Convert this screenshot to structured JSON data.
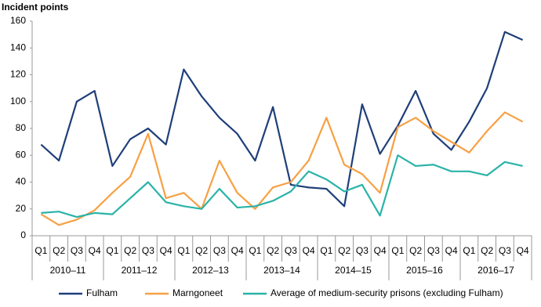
{
  "chart_data": {
    "type": "line",
    "y_label": "Incident points",
    "categories": [
      "Q1",
      "Q2",
      "Q3",
      "Q4",
      "Q1",
      "Q2",
      "Q3",
      "Q4",
      "Q1",
      "Q2",
      "Q3",
      "Q4",
      "Q1",
      "Q2",
      "Q3",
      "Q4",
      "Q1",
      "Q2",
      "Q3",
      "Q4",
      "Q1",
      "Q2",
      "Q3",
      "Q4",
      "Q1",
      "Q2",
      "Q3",
      "Q4"
    ],
    "groups": [
      "2010–11",
      "2011–12",
      "2012–13",
      "2013–14",
      "2014–15",
      "2015–16",
      "2016–17"
    ],
    "series": [
      {
        "name": "Fulham",
        "color": "#1f3f7a",
        "values": [
          68,
          56,
          100,
          108,
          52,
          72,
          80,
          68,
          124,
          104,
          88,
          76,
          56,
          96,
          38,
          36,
          35,
          22,
          98,
          61,
          82,
          108,
          76,
          64,
          85,
          110,
          152,
          146
        ]
      },
      {
        "name": "Marngoneet",
        "color": "#f7a043",
        "values": [
          16,
          8,
          12,
          19,
          32,
          44,
          76,
          28,
          32,
          20,
          56,
          32,
          20,
          36,
          40,
          56,
          88,
          53,
          46,
          32,
          81,
          88,
          78,
          70,
          62,
          78,
          92,
          85
        ]
      },
      {
        "name": "Average of medium-security prisons (excluding Fulham)",
        "color": "#2ab3a8",
        "values": [
          17,
          18,
          14,
          17,
          16,
          28,
          40,
          25,
          22,
          20,
          35,
          21,
          22,
          26,
          33,
          48,
          42,
          33,
          38,
          15,
          60,
          52,
          53,
          48,
          48,
          45,
          55,
          52
        ]
      }
    ],
    "ylim": [
      0,
      160
    ],
    "yticks": [
      0,
      20,
      40,
      60,
      80,
      100,
      120,
      140,
      160
    ],
    "grid": false
  }
}
